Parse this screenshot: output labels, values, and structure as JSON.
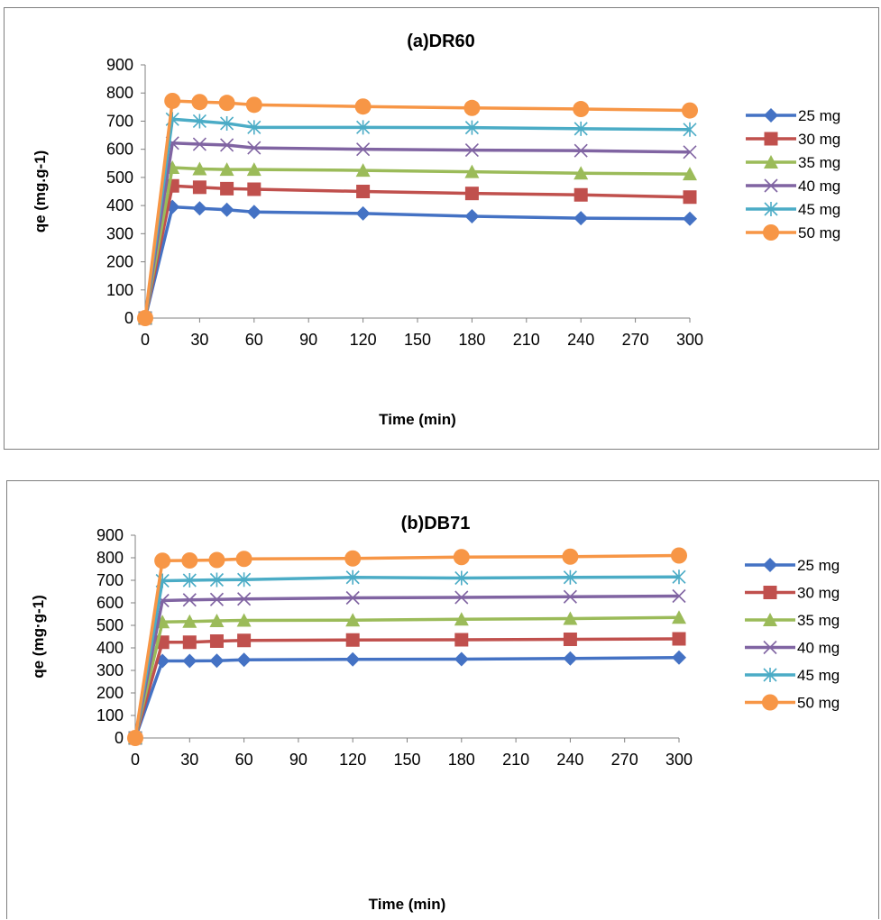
{
  "chart_data": [
    {
      "type": "line",
      "title": "(a)DR60",
      "xlabel": "Time (min)",
      "ylabel": "qe (mg.g-1)",
      "xlim": [
        0,
        300
      ],
      "ylim": [
        0,
        900
      ],
      "x_ticks": [
        0,
        30,
        60,
        90,
        120,
        150,
        180,
        210,
        240,
        270,
        300
      ],
      "y_ticks": [
        0,
        100,
        200,
        300,
        400,
        500,
        600,
        700,
        800,
        900
      ],
      "grid": false,
      "legend_position": "right",
      "x": [
        0,
        15,
        30,
        45,
        60,
        120,
        180,
        240,
        300
      ],
      "series": [
        {
          "name": "25 mg",
          "color": "#4472c4",
          "marker": "diamond",
          "values": [
            0,
            395,
            390,
            385,
            377,
            372,
            362,
            355,
            353
          ]
        },
        {
          "name": "30  mg",
          "color": "#c0504d",
          "marker": "square",
          "values": [
            0,
            470,
            465,
            460,
            458,
            450,
            443,
            438,
            430
          ]
        },
        {
          "name": "35  mg",
          "color": "#9bbb59",
          "marker": "triangle",
          "values": [
            0,
            535,
            530,
            528,
            528,
            525,
            520,
            515,
            512
          ]
        },
        {
          "name": "40  mg",
          "color": "#8064a2",
          "marker": "x",
          "values": [
            0,
            622,
            618,
            615,
            605,
            600,
            597,
            595,
            590
          ]
        },
        {
          "name": "45  mg",
          "color": "#4bacc6",
          "marker": "star",
          "values": [
            0,
            707,
            700,
            692,
            678,
            678,
            677,
            673,
            670
          ]
        },
        {
          "name": "50  mg",
          "color": "#f79646",
          "marker": "circle",
          "values": [
            0,
            772,
            768,
            765,
            758,
            752,
            747,
            743,
            738
          ]
        }
      ]
    },
    {
      "type": "line",
      "title": "(b)DB71",
      "xlabel": "Time (min)",
      "ylabel": "qe (mg·g-1)",
      "xlim": [
        0,
        300
      ],
      "ylim": [
        0,
        900
      ],
      "x_ticks": [
        0,
        30,
        60,
        90,
        120,
        150,
        180,
        210,
        240,
        270,
        300
      ],
      "y_ticks": [
        0,
        100,
        200,
        300,
        400,
        500,
        600,
        700,
        800,
        900
      ],
      "grid": false,
      "legend_position": "right",
      "x": [
        0,
        15,
        30,
        45,
        60,
        120,
        180,
        240,
        300
      ],
      "series": [
        {
          "name": "25 mg",
          "color": "#4472c4",
          "marker": "diamond",
          "values": [
            0,
            342,
            342,
            343,
            347,
            349,
            350,
            353,
            357
          ]
        },
        {
          "name": "30  mg",
          "color": "#c0504d",
          "marker": "square",
          "values": [
            0,
            425,
            425,
            430,
            433,
            435,
            436,
            438,
            440
          ]
        },
        {
          "name": "35  mg",
          "color": "#9bbb59",
          "marker": "triangle",
          "values": [
            0,
            515,
            517,
            520,
            522,
            523,
            527,
            530,
            535
          ]
        },
        {
          "name": "40  mg",
          "color": "#8064a2",
          "marker": "x",
          "values": [
            0,
            610,
            613,
            615,
            617,
            622,
            624,
            627,
            630
          ]
        },
        {
          "name": "45  mg",
          "color": "#4bacc6",
          "marker": "star",
          "values": [
            0,
            698,
            700,
            702,
            703,
            713,
            710,
            713,
            715
          ]
        },
        {
          "name": "50  mg",
          "color": "#f79646",
          "marker": "circle",
          "values": [
            0,
            787,
            788,
            790,
            795,
            797,
            803,
            805,
            810
          ]
        }
      ]
    }
  ]
}
